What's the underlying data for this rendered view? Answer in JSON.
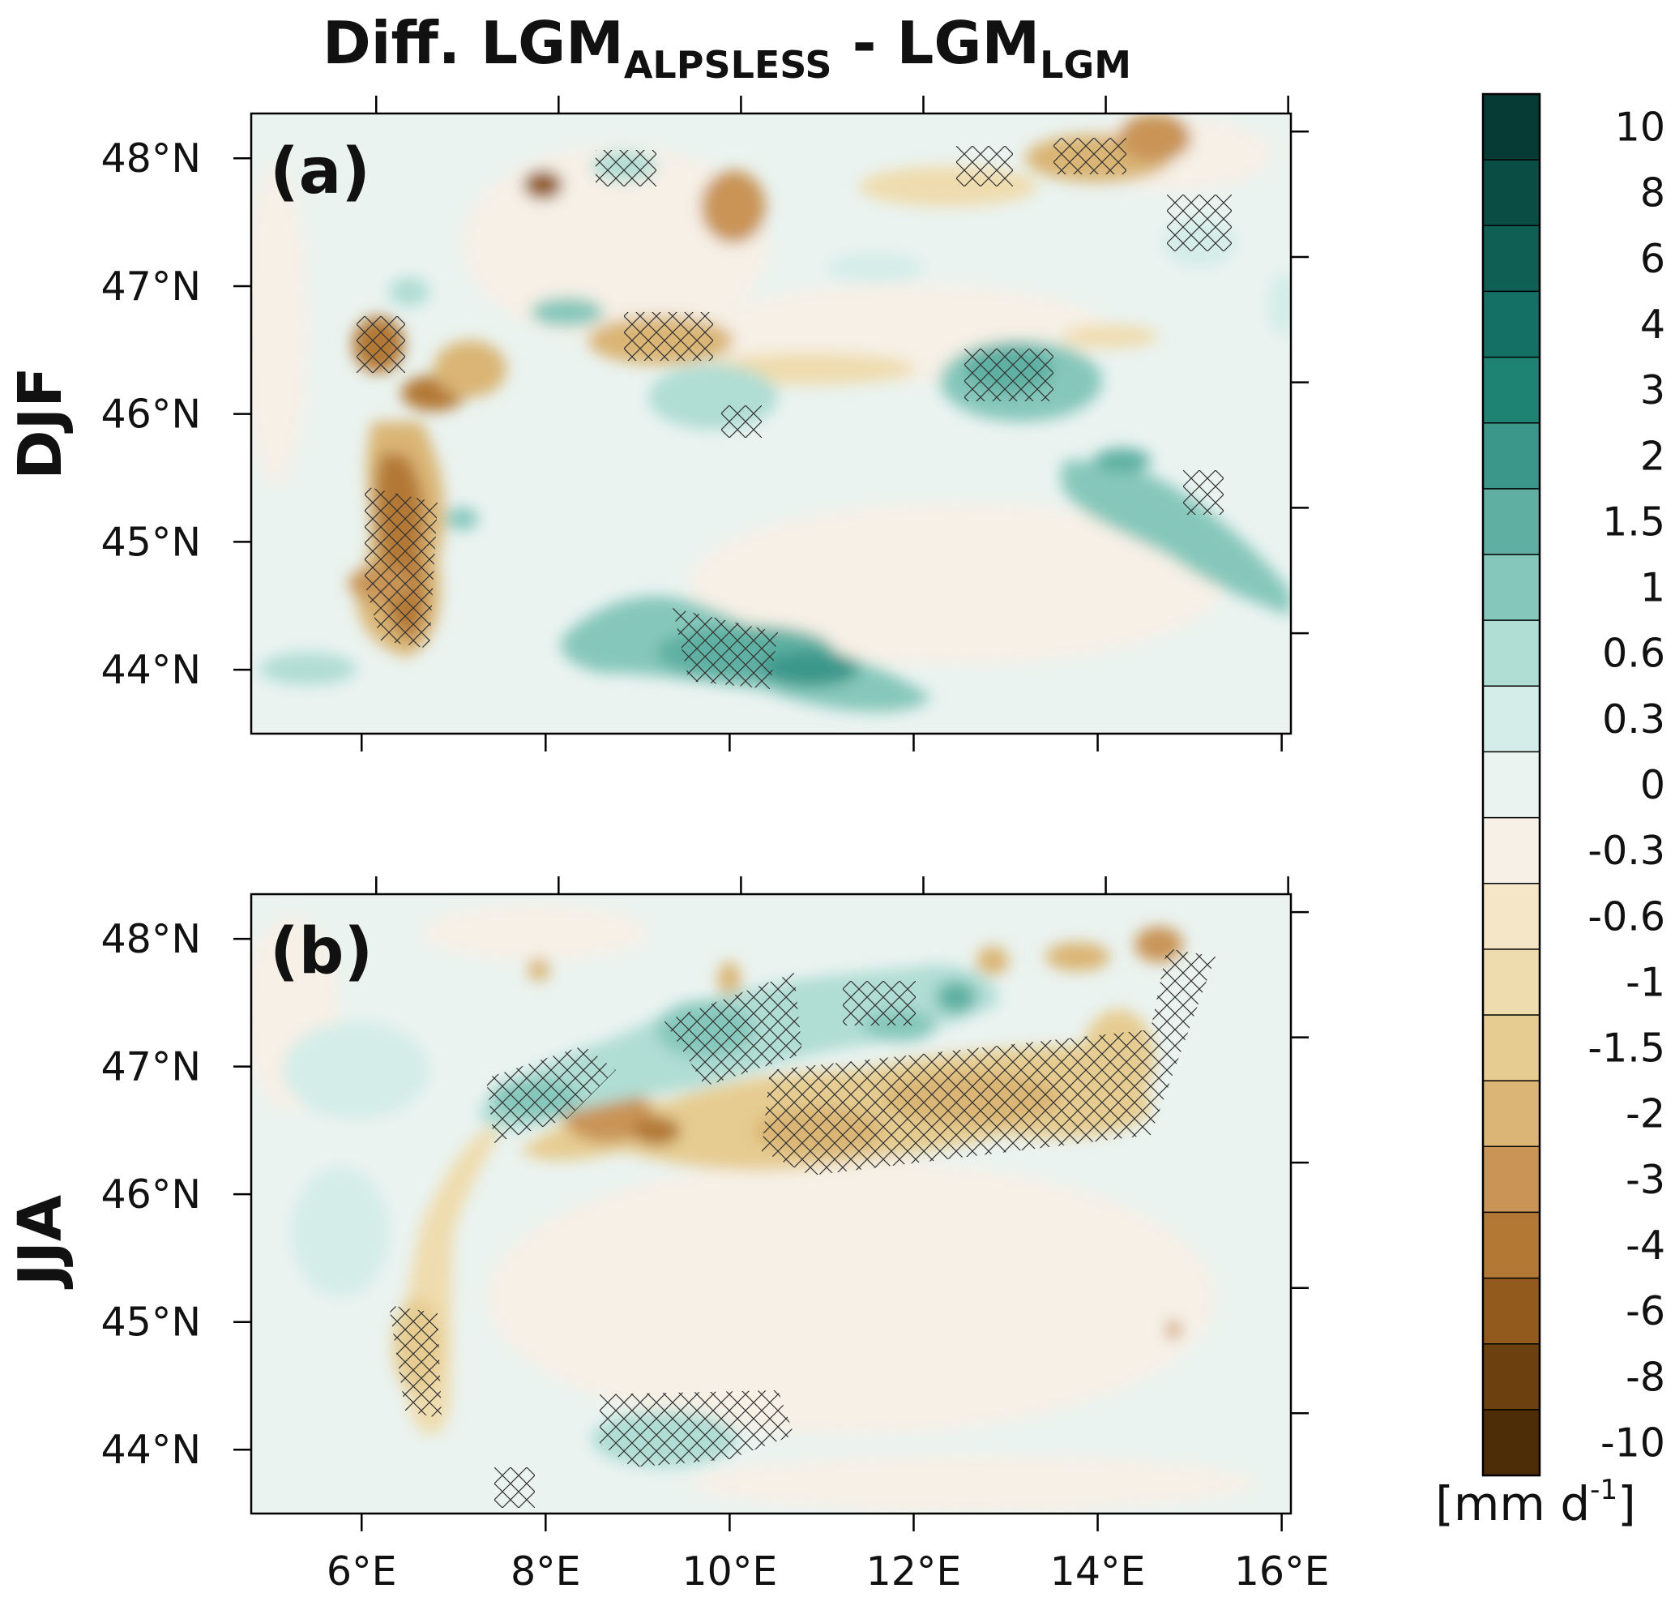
{
  "chart_data": {
    "type": "heatmap",
    "title": {
      "prefix": "Diff. LGM",
      "sub1": "ALPSLESS",
      "middle": " - LGM",
      "sub2": "LGM"
    },
    "units": {
      "base": "[mm d",
      "sup": "-1",
      "close": "]"
    },
    "xlim": [
      4.8,
      16.1
    ],
    "ylim": [
      43.5,
      48.35
    ],
    "x_ticks": [
      6,
      8,
      10,
      12,
      14,
      16
    ],
    "x_tick_labels": [
      "6°E",
      "8°E",
      "10°E",
      "12°E",
      "14°E",
      "16°E"
    ],
    "y_ticks": [
      44,
      45,
      46,
      47,
      48
    ],
    "y_tick_labels": [
      "44°N",
      "45°N",
      "46°N",
      "47°N",
      "48°N"
    ],
    "colorbar": {
      "labels": [
        "10",
        "8",
        "6",
        "4",
        "3",
        "2",
        "1.5",
        "1",
        "0.6",
        "0.3",
        "0",
        "-0.3",
        "-0.6",
        "-1",
        "-1.5",
        "-2",
        "-3",
        "-4",
        "-6",
        "-8",
        "-10"
      ],
      "colors": [
        "#053b34",
        "#0a4d44",
        "#0f5f55",
        "#146f64",
        "#1f8373",
        "#3a978a",
        "#5fb0a3",
        "#86c7bb",
        "#b0ddd4",
        "#d4ede8",
        "#eaf3f0",
        "#f6f0e6",
        "#f4e6c6",
        "#efdcae",
        "#e6cc91",
        "#dab575",
        "#c99456",
        "#b37834",
        "#925a1c",
        "#6c400f",
        "#4d2c08"
      ]
    },
    "panels": [
      {
        "tag": "(a)",
        "season": "DJF",
        "description_regions": [
          {
            "lon": 6.6,
            "lat": 45.0,
            "value": -2,
            "shape": "western-arc"
          },
          {
            "lon": 6.3,
            "lat": 46.55,
            "value": -3
          },
          {
            "lon": 6.6,
            "lat": 46.15,
            "value": -3
          },
          {
            "lon": 7.95,
            "lat": 47.78,
            "value": -4
          },
          {
            "lon": 10.2,
            "lat": 47.6,
            "value": -2
          },
          {
            "lon": 9.0,
            "lat": 46.6,
            "value": -1.5
          },
          {
            "lon": 12.8,
            "lat": 47.7,
            "value": -1
          },
          {
            "lon": 14.3,
            "lat": 48.0,
            "value": -1.5
          },
          {
            "lon": 10.0,
            "lat": 44.1,
            "value": 2,
            "shape": "apennine-band"
          },
          {
            "lon": 13.0,
            "lat": 46.1,
            "value": 1.5
          },
          {
            "lon": 14.6,
            "lat": 45.3,
            "value": 1.5
          },
          {
            "lon": 8.5,
            "lat": 46.4,
            "value": 0.6
          }
        ]
      },
      {
        "tag": "(b)",
        "season": "JJA",
        "description_regions": [
          {
            "lon": 6.7,
            "lat": 44.9,
            "value": -1.5,
            "shape": "western-arc"
          },
          {
            "lon": 8.7,
            "lat": 46.5,
            "value": -3
          },
          {
            "lon": 12.2,
            "lat": 46.65,
            "value": -2,
            "shape": "southern-band"
          },
          {
            "lon": 14.6,
            "lat": 47.7,
            "value": -1.5
          },
          {
            "lon": 10.0,
            "lat": 47.2,
            "value": 1.5,
            "shape": "northern-band"
          },
          {
            "lon": 9.5,
            "lat": 44.2,
            "value": 0.6
          },
          {
            "lon": 12.5,
            "lat": 47.4,
            "value": 1
          }
        ]
      }
    ]
  }
}
